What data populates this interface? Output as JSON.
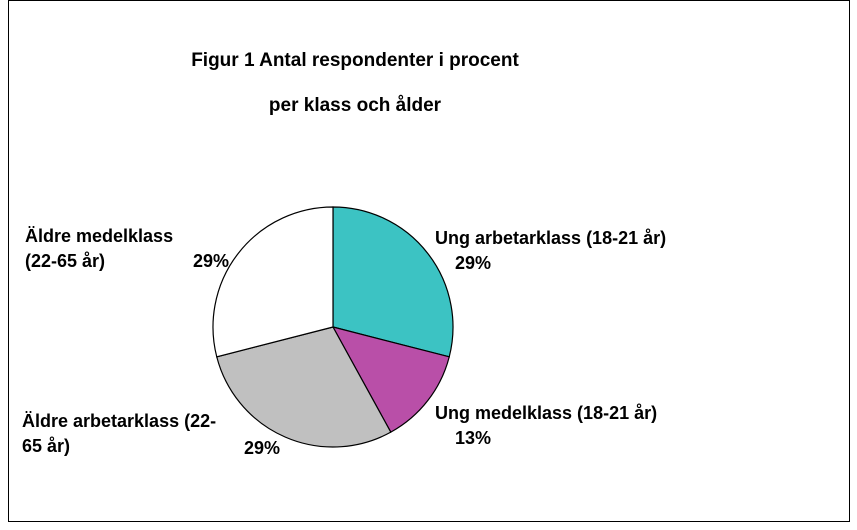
{
  "chart_data": {
    "type": "pie",
    "title": "Figur 1 Antal respondenter i procent per klass och ålder",
    "categories": [
      "Ung arbetarklass (18-21 år)",
      "Ung medelklass (18-21 år)",
      "Äldre arbetarklass (22-65 år)",
      "Äldre medelklass (22-65 år)"
    ],
    "values": [
      29,
      13,
      29,
      29
    ],
    "value_labels": [
      "29%",
      "13%",
      "29%",
      "29%"
    ],
    "colors": [
      "#3cc3c3",
      "#b94fa8",
      "#c0c0c0",
      "#ffffff"
    ]
  }
}
